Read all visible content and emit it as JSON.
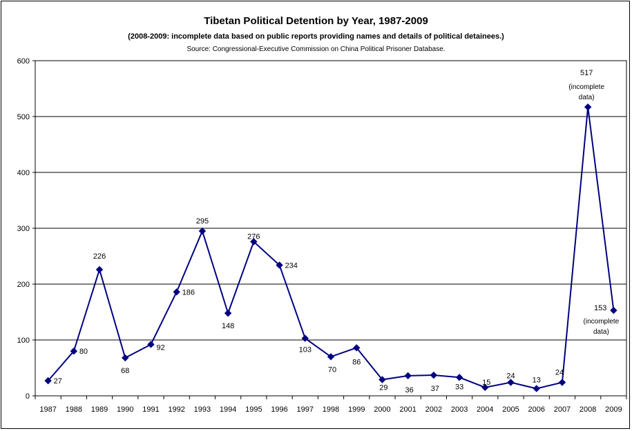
{
  "chart_data": {
    "type": "line",
    "title": "Tibetan Political Detention by Year, 1987-2009",
    "subtitle": "(2008-2009: incomplete data based on public reports providing names and details of political detainees.)",
    "source": "Source: Congressional-Executive Commission on China Political Prisoner Database.",
    "xlabel": "",
    "ylabel": "",
    "ylim": [
      0,
      600
    ],
    "yticks": [
      0,
      100,
      200,
      300,
      400,
      500,
      600
    ],
    "grid": true,
    "legend": "none",
    "categories": [
      "1987",
      "1988",
      "1989",
      "1990",
      "1991",
      "1992",
      "1993",
      "1994",
      "1995",
      "1996",
      "1997",
      "1998",
      "1999",
      "2000",
      "2001",
      "2002",
      "2003",
      "2004",
      "2005",
      "2006",
      "2007",
      "2008",
      "2009"
    ],
    "series": [
      {
        "values": [
          27,
          80,
          226,
          68,
          92,
          186,
          295,
          148,
          276,
          234,
          103,
          70,
          86,
          29,
          36,
          37,
          33,
          15,
          24,
          13,
          24,
          517,
          153
        ],
        "color": "#000080"
      }
    ],
    "annotations": [
      {
        "category": "2008",
        "text": [
          "(incomplete",
          "data)"
        ]
      },
      {
        "category": "2009",
        "text": [
          "(incomplete",
          "data)"
        ]
      }
    ]
  }
}
